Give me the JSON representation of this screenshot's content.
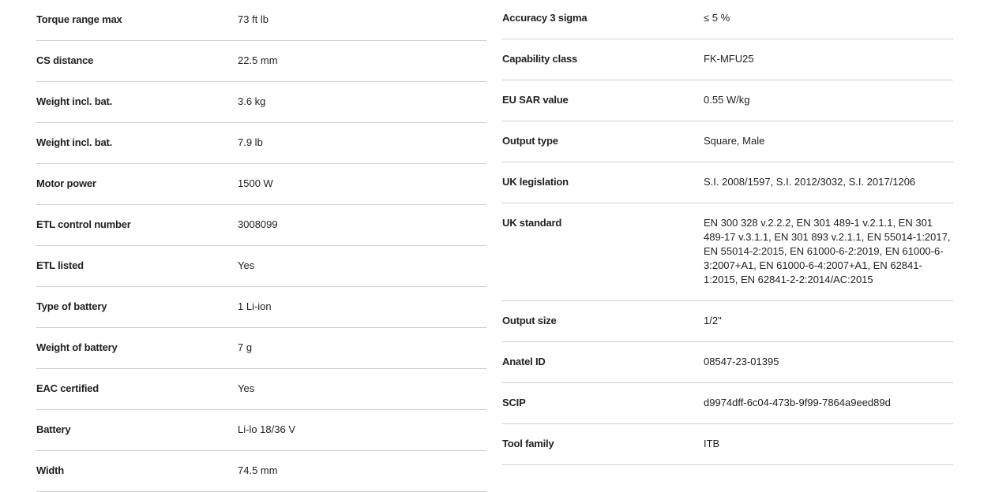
{
  "left": [
    {
      "label": "Torque range max",
      "value": "73 ft lb"
    },
    {
      "label": "CS distance",
      "value": "22.5 mm"
    },
    {
      "label": "Weight incl. bat.",
      "value": "3.6 kg"
    },
    {
      "label": "Weight incl. bat.",
      "value": "7.9 lb"
    },
    {
      "label": "Motor power",
      "value": "1500 W"
    },
    {
      "label": "ETL control number",
      "value": "3008099"
    },
    {
      "label": "ETL listed",
      "value": "Yes"
    },
    {
      "label": "Type of battery",
      "value": "1 Li-ion"
    },
    {
      "label": "Weight of battery",
      "value": "7 g"
    },
    {
      "label": "EAC certified",
      "value": "Yes"
    },
    {
      "label": "Battery",
      "value": "Li-lo 18/36 V"
    },
    {
      "label": "Width",
      "value": "74.5 mm"
    }
  ],
  "right": [
    {
      "label": "Accuracy 3 sigma",
      "value": "≤ 5 %"
    },
    {
      "label": "Capability class",
      "value": "FK-MFU25"
    },
    {
      "label": "EU SAR value",
      "value": "0.55 W/kg"
    },
    {
      "label": "Output type",
      "value": "Square, Male"
    },
    {
      "label": "UK legislation",
      "value": "S.I. 2008/1597, S.I. 2012/3032, S.I. 2017/1206"
    },
    {
      "label": "UK standard",
      "value": "EN 300 328 v.2.2.2, EN 301 489-1 v.2.1.1, EN 301 489-17 v.3.1.1, EN 301 893 v.2.1.1, EN 55014-1:2017, EN 55014-2:2015, EN 61000-6-2:2019, EN 61000-6-3:2007+A1, EN 61000-6-4:2007+A1, EN 62841-1:2015, EN 62841-2-2:2014/AC:2015"
    },
    {
      "label": "Output size",
      "value": "1/2\""
    },
    {
      "label": "Anatel ID",
      "value": "08547-23-01395"
    },
    {
      "label": "SCIP",
      "value": "d9974dff-6c04-473b-9f99-7864a9eed89d"
    },
    {
      "label": "Tool family",
      "value": "ITB"
    }
  ]
}
